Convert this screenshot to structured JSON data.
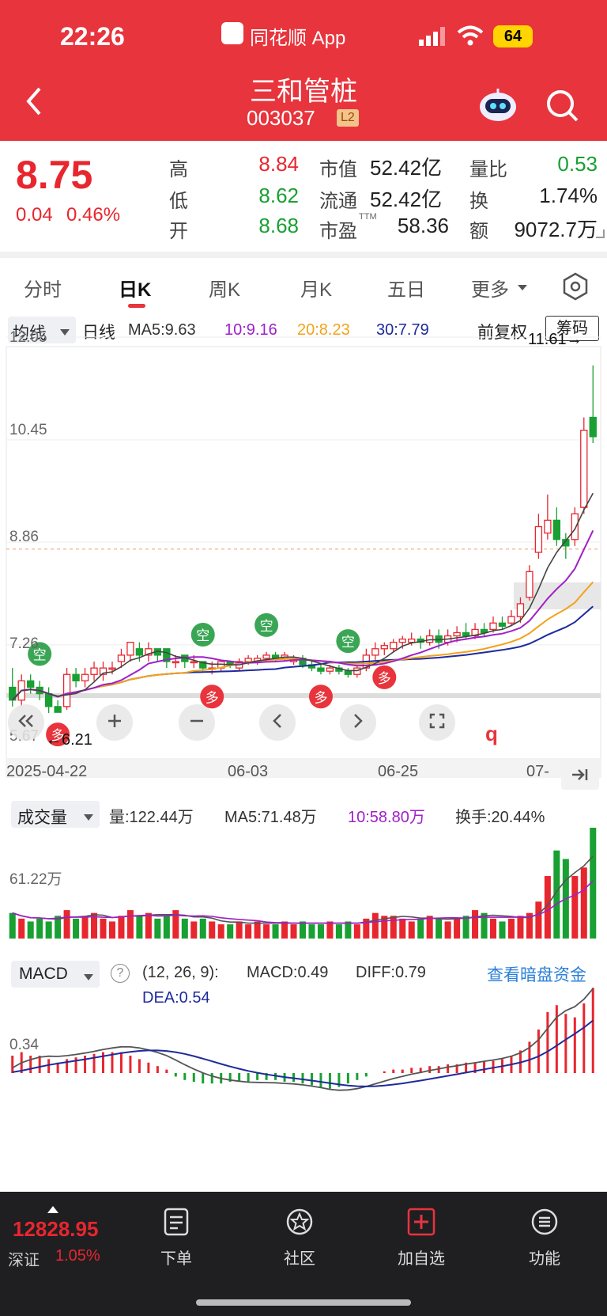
{
  "status_bar": {
    "time": "22:26",
    "app_name": "同花顺 App",
    "battery": "64"
  },
  "header": {
    "stock_name": "三和管桩",
    "stock_code": "003037",
    "level_badge": "L2"
  },
  "quote": {
    "price": "8.75",
    "change": "0.04",
    "change_pct": "0.46%",
    "high_label": "高",
    "high": "8.84",
    "low_label": "低",
    "low": "8.62",
    "open_label": "开",
    "open": "8.68",
    "mktcap_label": "市值",
    "mktcap": "52.42亿",
    "float_label": "流通",
    "float_cap": "52.42亿",
    "pe_label": "市盈",
    "pe_sup": "TTM",
    "pe": "58.36",
    "vol_ratio_label": "量比",
    "vol_ratio": "0.53",
    "turnover_label": "换",
    "turnover": "1.74%",
    "amount_label": "额",
    "amount": "9072.7万"
  },
  "tabs": {
    "items": [
      "分时",
      "日K",
      "周K",
      "月K",
      "五日",
      "更多"
    ],
    "active": 1
  },
  "kline_bar": {
    "ma_selector": "均线",
    "period": "日线",
    "ma5": "MA5:9.63",
    "ma10": "10:9.16",
    "ma20": "20:8.23",
    "ma30": "30:7.79",
    "adjust": "前复权",
    "chips": "筹码"
  },
  "price_axis": {
    "ticks": [
      "12.05",
      "10.45",
      "8.86",
      "7.26",
      "5.67"
    ],
    "max_label": "11.61→",
    "min_label": "←6.21"
  },
  "date_axis": {
    "labels": [
      "2025-04-22",
      "06-03",
      "06-25",
      "07-"
    ]
  },
  "volume": {
    "selector": "成交量",
    "vol": "量:122.44万",
    "ma5": "MA5:71.48万",
    "ma10": "10:58.80万",
    "turnover": "换手:20.44%",
    "tick": "61.22万"
  },
  "macd": {
    "selector": "MACD",
    "params": "(12, 26, 9):",
    "macd": "MACD:0.49",
    "diff": "DIFF:0.79",
    "dea": "DEA:0.54",
    "link": "查看暗盘资金",
    "tick": "0.34"
  },
  "chart_data": {
    "type": "candlestick",
    "ylim": [
      5.67,
      12.05
    ],
    "max_price": 11.61,
    "min_price": 6.21,
    "candles": [
      [
        6.6,
        6.4,
        6.9,
        6.3
      ],
      [
        6.4,
        6.7,
        6.8,
        6.3
      ],
      [
        6.7,
        6.6,
        6.8,
        6.5
      ],
      [
        6.6,
        6.5,
        6.7,
        6.4
      ],
      [
        6.5,
        6.3,
        6.6,
        6.2
      ],
      [
        6.3,
        6.21,
        6.4,
        6.21
      ],
      [
        6.3,
        6.8,
        6.9,
        6.25
      ],
      [
        6.8,
        6.7,
        6.9,
        6.6
      ],
      [
        6.7,
        6.8,
        6.9,
        6.6
      ],
      [
        6.8,
        6.9,
        7.0,
        6.7
      ],
      [
        6.8,
        6.9,
        7.0,
        6.7
      ],
      [
        6.9,
        6.9,
        7.0,
        6.8
      ],
      [
        7.0,
        7.1,
        7.2,
        6.9
      ],
      [
        7.1,
        7.3,
        7.3,
        7.0
      ],
      [
        7.2,
        7.1,
        7.3,
        7.0
      ],
      [
        7.1,
        7.2,
        7.3,
        7.0
      ],
      [
        7.2,
        7.1,
        7.2,
        7.0
      ],
      [
        7.2,
        7.0,
        7.2,
        6.9
      ],
      [
        7.0,
        7.0,
        7.1,
        6.9
      ],
      [
        7.1,
        7.0,
        7.1,
        6.9
      ],
      [
        7.0,
        7.0,
        7.1,
        6.9
      ],
      [
        7.0,
        6.9,
        7.0,
        6.85
      ],
      [
        6.9,
        6.9,
        7.0,
        6.8
      ],
      [
        6.9,
        7.0,
        7.0,
        6.85
      ],
      [
        7.0,
        6.95,
        7.0,
        6.9
      ],
      [
        6.9,
        7.0,
        7.05,
        6.85
      ],
      [
        7.0,
        7.05,
        7.1,
        6.95
      ],
      [
        7.0,
        7.05,
        7.1,
        6.95
      ],
      [
        7.05,
        7.1,
        7.15,
        7.0
      ],
      [
        7.1,
        7.05,
        7.15,
        7.0
      ],
      [
        7.05,
        7.1,
        7.15,
        7.0
      ],
      [
        7.0,
        7.05,
        7.1,
        6.95
      ],
      [
        7.05,
        6.95,
        7.1,
        6.9
      ],
      [
        6.95,
        6.9,
        7.0,
        6.85
      ],
      [
        6.9,
        6.85,
        6.95,
        6.8
      ],
      [
        6.85,
        6.9,
        6.95,
        6.8
      ],
      [
        6.9,
        6.85,
        6.95,
        6.8
      ],
      [
        6.85,
        6.8,
        6.9,
        6.75
      ],
      [
        6.8,
        6.9,
        6.95,
        6.75
      ],
      [
        6.9,
        7.1,
        7.2,
        6.85
      ],
      [
        7.1,
        7.2,
        7.3,
        7.0
      ],
      [
        7.2,
        7.25,
        7.3,
        7.1
      ],
      [
        7.2,
        7.3,
        7.35,
        7.15
      ],
      [
        7.3,
        7.35,
        7.4,
        7.2
      ],
      [
        7.3,
        7.35,
        7.45,
        7.25
      ],
      [
        7.35,
        7.3,
        7.4,
        7.2
      ],
      [
        7.3,
        7.4,
        7.5,
        7.25
      ],
      [
        7.4,
        7.3,
        7.5,
        7.2
      ],
      [
        7.3,
        7.4,
        7.5,
        7.25
      ],
      [
        7.4,
        7.45,
        7.55,
        7.3
      ],
      [
        7.45,
        7.4,
        7.6,
        7.35
      ],
      [
        7.4,
        7.5,
        7.6,
        7.35
      ],
      [
        7.5,
        7.45,
        7.6,
        7.4
      ],
      [
        7.5,
        7.6,
        7.7,
        7.45
      ],
      [
        7.6,
        7.55,
        7.7,
        7.5
      ],
      [
        7.6,
        7.7,
        7.8,
        7.55
      ],
      [
        7.7,
        7.9,
        8.0,
        7.6
      ],
      [
        8.0,
        8.4,
        8.5,
        7.95
      ],
      [
        8.7,
        9.1,
        9.3,
        8.6
      ],
      [
        9.0,
        9.2,
        9.6,
        8.9
      ],
      [
        9.2,
        8.9,
        9.4,
        8.8
      ],
      [
        8.9,
        8.8,
        9.0,
        8.6
      ],
      [
        8.9,
        9.3,
        9.4,
        8.8
      ],
      [
        9.4,
        10.6,
        10.8,
        9.3
      ],
      [
        10.8,
        10.5,
        11.61,
        10.4
      ]
    ],
    "volumes": [
      9,
      7,
      6,
      7,
      6,
      8,
      10,
      7,
      8,
      9,
      7,
      6,
      8,
      10,
      8,
      9,
      7,
      8,
      10,
      7,
      6,
      7,
      6,
      5,
      5,
      6,
      5,
      6,
      5,
      5,
      6,
      5,
      6,
      5,
      5,
      6,
      5,
      6,
      5,
      7,
      9,
      8,
      8,
      7,
      6,
      7,
      8,
      7,
      6,
      7,
      8,
      10,
      9,
      7,
      6,
      7,
      8,
      9,
      13,
      22,
      31,
      28,
      22,
      25,
      39
    ],
    "macd_hist": [
      0.1,
      0.12,
      0.1,
      0.1,
      0.08,
      0.06,
      0.08,
      0.09,
      0.1,
      0.11,
      0.12,
      0.12,
      0.12,
      0.1,
      0.08,
      0.06,
      0.04,
      0.02,
      -0.02,
      -0.04,
      -0.05,
      -0.06,
      -0.06,
      -0.06,
      -0.05,
      -0.05,
      -0.05,
      -0.04,
      -0.04,
      -0.04,
      -0.05,
      -0.05,
      -0.06,
      -0.07,
      -0.08,
      -0.09,
      -0.08,
      -0.06,
      -0.04,
      -0.02,
      0.0,
      0.01,
      0.02,
      0.02,
      0.03,
      0.03,
      0.04,
      0.04,
      0.05,
      0.05,
      0.06,
      0.06,
      0.07,
      0.07,
      0.08,
      0.1,
      0.13,
      0.18,
      0.25,
      0.35,
      0.39,
      0.34,
      0.32,
      0.4,
      0.49
    ]
  },
  "tags": [
    {
      "text": "空",
      "color": "#3aa655"
    },
    {
      "text": "空",
      "color": "#3aa655"
    },
    {
      "text": "空",
      "color": "#3aa655"
    },
    {
      "text": "空",
      "color": "#3aa655"
    },
    {
      "text": "多",
      "color": "#e8343c"
    },
    {
      "text": "多",
      "color": "#e8343c"
    },
    {
      "text": "多",
      "color": "#e8343c"
    },
    {
      "text": "多",
      "color": "#e8343c"
    }
  ],
  "bottom_nav": {
    "index_value": "12828.95",
    "index_name": "深证",
    "index_change": "1.05%",
    "items": [
      "下单",
      "社区",
      "加自选",
      "功能"
    ]
  },
  "colors": {
    "header_red": "#e8343c",
    "up": "#e8262e",
    "down": "#18a032",
    "ma5": "#444444",
    "ma10": "#a020c8",
    "ma20": "#f2a31b",
    "ma30": "#1e2a9b"
  }
}
